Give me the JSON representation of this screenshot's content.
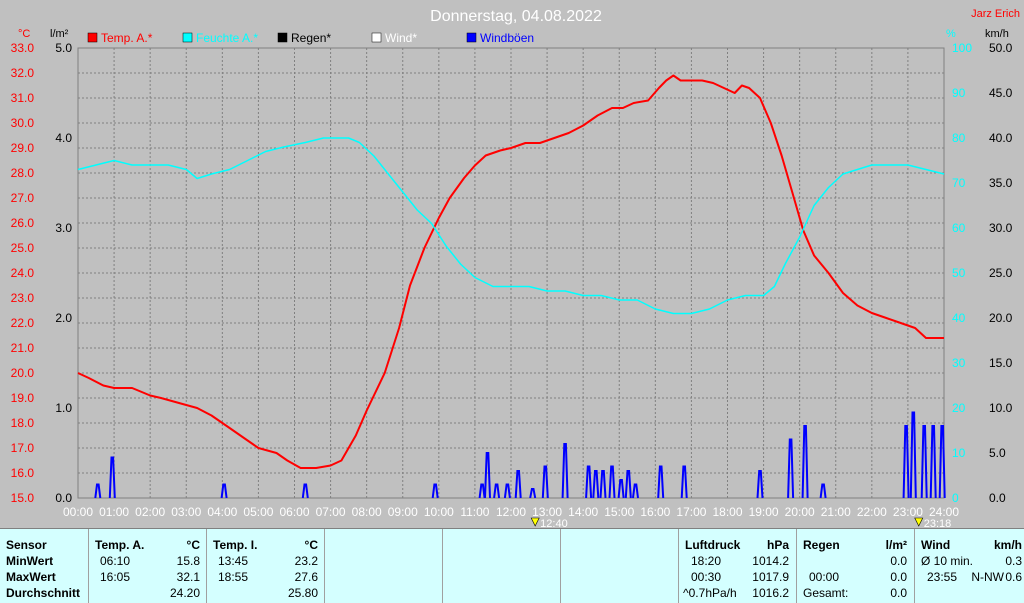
{
  "title": "Donnerstag, 04.08.2022",
  "station": "Jarz Erich",
  "colors": {
    "background": "#c0c0c0",
    "temp": "#ff0000",
    "humidity": "#00ffff",
    "rain": "#000000",
    "wind": "#ffffff",
    "gust": "#0000ff",
    "grid": "#808080",
    "panel": "#d4ffff"
  },
  "chart_data": {
    "type": "line",
    "title": "Donnerstag, 04.08.2022",
    "axes": {
      "temp": {
        "unit": "°C",
        "range": [
          15.0,
          33.0
        ],
        "ticks": [
          "15.0",
          "16.0",
          "17.0",
          "18.0",
          "19.0",
          "20.0",
          "21.0",
          "22.0",
          "23.0",
          "24.0",
          "25.0",
          "26.0",
          "27.0",
          "28.0",
          "29.0",
          "30.0",
          "31.0",
          "32.0",
          "33.0"
        ]
      },
      "rain": {
        "unit": "l/m²",
        "range": [
          0.0,
          5.0
        ],
        "ticks": [
          "0.0",
          "1.0",
          "2.0",
          "3.0",
          "4.0",
          "5.0"
        ]
      },
      "humidity": {
        "unit": "%",
        "range": [
          0,
          100
        ],
        "ticks": [
          "0",
          "10",
          "20",
          "30",
          "40",
          "50",
          "60",
          "70",
          "80",
          "90",
          "100"
        ]
      },
      "wind": {
        "unit": "km/h",
        "range": [
          0.0,
          50.0
        ],
        "ticks": [
          "0.0",
          "5.0",
          "10.0",
          "15.0",
          "20.0",
          "25.0",
          "30.0",
          "35.0",
          "40.0",
          "45.0",
          "50.0"
        ]
      }
    },
    "x_ticks": [
      "00:00",
      "01:00",
      "02:00",
      "03:00",
      "04:00",
      "05:00",
      "06:00",
      "07:00",
      "08:00",
      "09:00",
      "10:00",
      "11:00",
      "12:00",
      "13:00",
      "14:00",
      "15:00",
      "16:00",
      "17:00",
      "18:00",
      "19:00",
      "20:00",
      "21:00",
      "22:00",
      "23:00",
      "24:00"
    ],
    "x_range_hours": [
      0,
      24
    ],
    "grid": true,
    "legend_position": "top",
    "legend": [
      {
        "label": "Temp. A.*",
        "color": "#ff0000"
      },
      {
        "label": "Feuchte A.*",
        "color": "#00ffff"
      },
      {
        "label": "Regen*",
        "color": "#000000"
      },
      {
        "label": "Wind*",
        "color": "#ffffff"
      },
      {
        "label": "Windböen",
        "color": "#0000ff"
      }
    ],
    "markers": [
      {
        "label": "12:40",
        "hour": 12.67
      },
      {
        "label": "23:18",
        "hour": 23.3
      }
    ],
    "series": [
      {
        "name": "Temp. A.*",
        "axis": "temp",
        "color": "#ff0000",
        "points": [
          [
            0,
            20.0
          ],
          [
            0.3,
            19.8
          ],
          [
            0.7,
            19.5
          ],
          [
            1.0,
            19.4
          ],
          [
            1.5,
            19.4
          ],
          [
            2.0,
            19.1
          ],
          [
            2.3,
            19.0
          ],
          [
            2.8,
            18.8
          ],
          [
            3.3,
            18.6
          ],
          [
            3.7,
            18.3
          ],
          [
            4.2,
            17.8
          ],
          [
            4.7,
            17.3
          ],
          [
            5.0,
            17.0
          ],
          [
            5.5,
            16.8
          ],
          [
            5.8,
            16.5
          ],
          [
            6.17,
            16.2
          ],
          [
            6.6,
            16.2
          ],
          [
            7.0,
            16.3
          ],
          [
            7.3,
            16.5
          ],
          [
            7.7,
            17.5
          ],
          [
            8.0,
            18.5
          ],
          [
            8.5,
            20.0
          ],
          [
            8.9,
            21.8
          ],
          [
            9.2,
            23.5
          ],
          [
            9.6,
            25.0
          ],
          [
            10.0,
            26.2
          ],
          [
            10.3,
            27.0
          ],
          [
            10.7,
            27.8
          ],
          [
            11.0,
            28.3
          ],
          [
            11.3,
            28.7
          ],
          [
            11.7,
            28.9
          ],
          [
            12.0,
            29.0
          ],
          [
            12.4,
            29.2
          ],
          [
            12.8,
            29.2
          ],
          [
            13.2,
            29.4
          ],
          [
            13.6,
            29.6
          ],
          [
            14.0,
            29.9
          ],
          [
            14.4,
            30.3
          ],
          [
            14.8,
            30.6
          ],
          [
            15.1,
            30.6
          ],
          [
            15.4,
            30.8
          ],
          [
            15.8,
            30.9
          ],
          [
            16.1,
            31.4
          ],
          [
            16.3,
            31.7
          ],
          [
            16.5,
            31.9
          ],
          [
            16.7,
            31.7
          ],
          [
            17.0,
            31.7
          ],
          [
            17.3,
            31.7
          ],
          [
            17.6,
            31.6
          ],
          [
            17.9,
            31.4
          ],
          [
            18.2,
            31.2
          ],
          [
            18.4,
            31.5
          ],
          [
            18.6,
            31.4
          ],
          [
            18.9,
            31.0
          ],
          [
            19.2,
            30.0
          ],
          [
            19.5,
            28.7
          ],
          [
            19.8,
            27.2
          ],
          [
            20.1,
            25.7
          ],
          [
            20.4,
            24.7
          ],
          [
            20.8,
            24.0
          ],
          [
            21.2,
            23.2
          ],
          [
            21.6,
            22.7
          ],
          [
            22.0,
            22.4
          ],
          [
            22.4,
            22.2
          ],
          [
            22.8,
            22.0
          ],
          [
            23.2,
            21.8
          ],
          [
            23.5,
            21.4
          ],
          [
            23.8,
            21.4
          ],
          [
            24.0,
            21.4
          ]
        ]
      },
      {
        "name": "Feuchte A.*",
        "axis": "humidity",
        "color": "#00ffff",
        "points": [
          [
            0,
            73
          ],
          [
            0.5,
            74
          ],
          [
            1.0,
            75
          ],
          [
            1.5,
            74
          ],
          [
            2.0,
            74
          ],
          [
            2.5,
            74
          ],
          [
            3.0,
            73
          ],
          [
            3.3,
            71
          ],
          [
            3.7,
            72
          ],
          [
            4.2,
            73
          ],
          [
            4.7,
            75
          ],
          [
            5.2,
            77
          ],
          [
            5.7,
            78
          ],
          [
            6.3,
            79
          ],
          [
            6.8,
            80
          ],
          [
            7.2,
            80
          ],
          [
            7.5,
            80
          ],
          [
            7.8,
            79
          ],
          [
            8.2,
            76
          ],
          [
            8.6,
            72
          ],
          [
            9.0,
            68
          ],
          [
            9.4,
            64
          ],
          [
            9.8,
            61
          ],
          [
            10.2,
            56
          ],
          [
            10.6,
            52
          ],
          [
            11.0,
            49
          ],
          [
            11.5,
            47
          ],
          [
            12.0,
            47
          ],
          [
            12.5,
            47
          ],
          [
            13.0,
            46
          ],
          [
            13.5,
            46
          ],
          [
            14.0,
            45
          ],
          [
            14.5,
            45
          ],
          [
            15.0,
            44
          ],
          [
            15.5,
            44
          ],
          [
            16.0,
            42
          ],
          [
            16.5,
            41
          ],
          [
            17.0,
            41
          ],
          [
            17.5,
            42
          ],
          [
            18.0,
            44
          ],
          [
            18.5,
            45
          ],
          [
            19.0,
            45
          ],
          [
            19.3,
            47
          ],
          [
            19.6,
            52
          ],
          [
            20.0,
            58
          ],
          [
            20.4,
            65
          ],
          [
            20.8,
            69
          ],
          [
            21.2,
            72
          ],
          [
            21.6,
            73
          ],
          [
            22.0,
            74
          ],
          [
            22.5,
            74
          ],
          [
            23.0,
            74
          ],
          [
            23.5,
            73
          ],
          [
            24.0,
            72
          ]
        ]
      },
      {
        "name": "Windböen",
        "axis": "wind",
        "color": "#0000ff",
        "bursts": [
          [
            0.55,
            1.5
          ],
          [
            0.95,
            4.5
          ],
          [
            4.05,
            1.5
          ],
          [
            6.3,
            1.5
          ],
          [
            9.9,
            1.5
          ],
          [
            11.2,
            1.5
          ],
          [
            11.35,
            5.0
          ],
          [
            11.6,
            1.5
          ],
          [
            11.9,
            1.5
          ],
          [
            12.2,
            3.0
          ],
          [
            12.6,
            1.0
          ],
          [
            12.95,
            3.5
          ],
          [
            13.5,
            6.0
          ],
          [
            14.15,
            3.5
          ],
          [
            14.35,
            3.0
          ],
          [
            14.55,
            3.0
          ],
          [
            14.8,
            3.5
          ],
          [
            15.05,
            2.0
          ],
          [
            15.25,
            3.0
          ],
          [
            15.45,
            1.5
          ],
          [
            16.15,
            3.5
          ],
          [
            16.8,
            3.5
          ],
          [
            18.9,
            3.0
          ],
          [
            19.75,
            6.5
          ],
          [
            20.15,
            8.0
          ],
          [
            20.65,
            1.5
          ],
          [
            22.95,
            8.0
          ],
          [
            23.15,
            9.5
          ],
          [
            23.45,
            8.0
          ],
          [
            23.7,
            8.0
          ],
          [
            23.95,
            8.0
          ]
        ]
      }
    ]
  },
  "panel": {
    "sensor": {
      "header": "Sensor",
      "min": "MinWert",
      "max": "MaxWert",
      "avg": "Durchschnitt"
    },
    "temp_a": {
      "header": "Temp. A.",
      "unit": "°C",
      "min_time": "06:10",
      "min_val": "15.8",
      "max_time": "16:05",
      "max_val": "32.1",
      "avg": "24.20"
    },
    "temp_i": {
      "header": "Temp. I.",
      "unit": "°C",
      "min_time": "13:45",
      "min_val": "23.2",
      "max_time": "18:55",
      "max_val": "27.6",
      "avg": "25.80"
    },
    "pressure": {
      "header": "Luftdruck",
      "unit": "hPa",
      "min_time": "18:20",
      "min_val": "1014.2",
      "max_time": "00:30",
      "max_val": "1017.9",
      "trend": "^0.7hPa/h",
      "current": "1016.2"
    },
    "rain": {
      "header": "Regen",
      "unit": "l/m²",
      "min_val": "0.0",
      "max_time": "00:00",
      "max_val": "0.0",
      "total_label": "Gesamt:",
      "total": "0.0"
    },
    "wind": {
      "header": "Wind",
      "unit": "km/h",
      "avg_label": "Ø 10 min.",
      "avg_val": "0.3",
      "max_time": "23:55",
      "max_dir": "N-NW",
      "max_val": "0.6"
    }
  }
}
